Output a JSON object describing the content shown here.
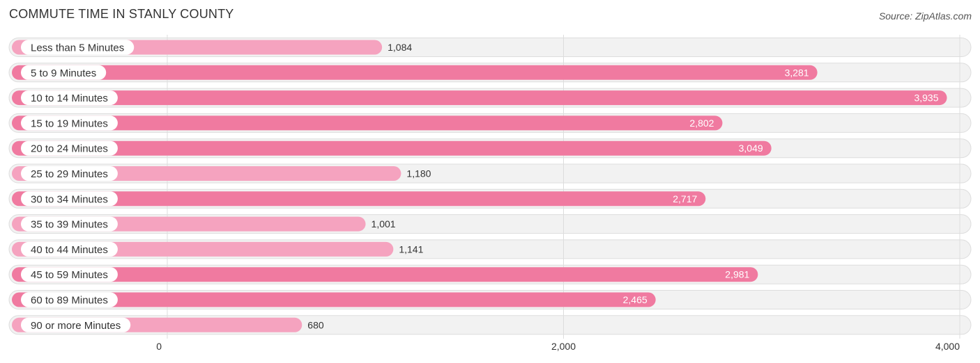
{
  "title": "COMMUTE TIME IN STANLY COUNTY",
  "source": "Source: ZipAtlas.com",
  "chart_data": {
    "type": "bar",
    "orientation": "horizontal",
    "title": "COMMUTE TIME IN STANLY COUNTY",
    "categories": [
      "Less than 5 Minutes",
      "5 to 9 Minutes",
      "10 to 14 Minutes",
      "15 to 19 Minutes",
      "20 to 24 Minutes",
      "25 to 29 Minutes",
      "30 to 34 Minutes",
      "35 to 39 Minutes",
      "40 to 44 Minutes",
      "45 to 59 Minutes",
      "60 to 89 Minutes",
      "90 or more Minutes"
    ],
    "values": [
      1084,
      3281,
      3935,
      2802,
      3049,
      1180,
      2717,
      1001,
      1141,
      2981,
      2465,
      680
    ],
    "value_labels": [
      "1,084",
      "3,281",
      "3,935",
      "2,802",
      "3,049",
      "1,180",
      "2,717",
      "1,001",
      "1,141",
      "2,981",
      "2,465",
      "680"
    ],
    "xlim": [
      0,
      4000
    ],
    "xticks": [
      0,
      2000,
      4000
    ],
    "xtick_labels": [
      "0",
      "2,000",
      "4,000"
    ],
    "xlabel": "",
    "ylabel": "",
    "grid": true,
    "colors": {
      "bar_strong": "#f07aa0",
      "bar_light": "#f5a3bf",
      "track": "#f2f2f2",
      "track_border": "#dddddd",
      "label_pill": "#ffffff",
      "grid": "#dddddd"
    }
  }
}
